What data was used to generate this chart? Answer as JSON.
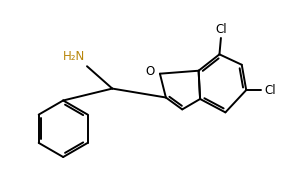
{
  "background": "#ffffff",
  "line_color": "#000000",
  "label_nh2": "H₂N",
  "label_o": "O",
  "label_cl1": "Cl",
  "label_cl2": "Cl",
  "figsize": [
    2.99,
    1.95
  ],
  "dpi": 100
}
